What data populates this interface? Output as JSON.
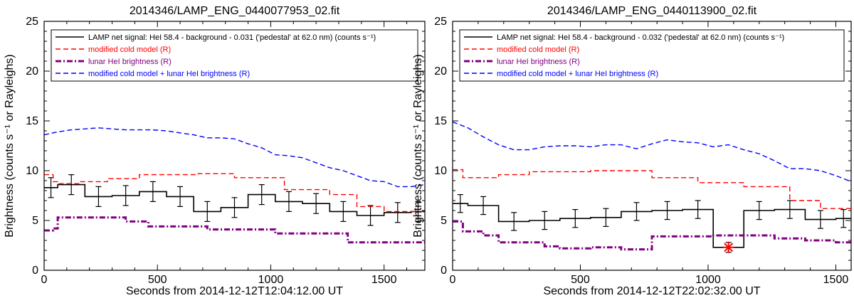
{
  "chart_data": [
    {
      "type": "line",
      "title": "2014346/LAMP_ENG_0440077953_02.fit",
      "xlabel": "Seconds from 2014-12-12T12:04:12.00 UT",
      "ylabel": "Brightness (counts s⁻¹ or Rayleighs)",
      "xlim": [
        0,
        1680
      ],
      "ylim": [
        0,
        25
      ],
      "x_ticks": [
        "0",
        "500",
        "1000",
        "1500"
      ],
      "y_ticks": [
        "0",
        "5",
        "10",
        "15",
        "20",
        "25"
      ],
      "legend": {
        "position": "top",
        "entries": [
          {
            "label": "LAMP net signal: HeI 58.4 - background - 0.031 ('pedestal' at 62.0 nm) (counts s⁻¹)",
            "color": "#000000",
            "style": "solid"
          },
          {
            "label": "modified cold model (R)",
            "color": "#ff0000",
            "style": "dashed"
          },
          {
            "label": "lunar HeI brightness (R)",
            "color": "#800080",
            "style": "dashdot"
          },
          {
            "label": "modified cold model + lunar HeI brightness (R)",
            "color": "#0000ff",
            "style": "dashed"
          }
        ]
      },
      "series": [
        {
          "name": "LAMP net signal",
          "type": "step-errorbar",
          "color": "#000000",
          "edges": [
            0,
            60,
            180,
            300,
            420,
            540,
            660,
            780,
            900,
            1020,
            1140,
            1260,
            1380,
            1500,
            1620,
            1680
          ],
          "values": [
            8.3,
            8.6,
            7.4,
            7.5,
            7.9,
            7.4,
            5.9,
            6.3,
            7.6,
            6.9,
            6.7,
            5.9,
            5.5,
            5.8,
            5.9
          ],
          "errors": [
            1.0,
            1.0,
            1.0,
            1.0,
            1.0,
            1.0,
            1.0,
            1.0,
            1.0,
            1.0,
            1.0,
            1.0,
            1.0,
            1.0,
            1.0
          ]
        },
        {
          "name": "modified cold model",
          "type": "step",
          "color": "#ff0000",
          "dash": "dashed",
          "edges": [
            0,
            40,
            60,
            160,
            280,
            420,
            680,
            840,
            1060,
            1260,
            1380,
            1500,
            1680
          ],
          "values": [
            9.6,
            8.9,
            8.7,
            8.9,
            9.2,
            9.6,
            9.7,
            9.3,
            8.1,
            7.6,
            6.4,
            5.9
          ]
        },
        {
          "name": "lunar HeI brightness",
          "type": "step",
          "color": "#800080",
          "dash": "dashdot",
          "edges": [
            0,
            40,
            60,
            360,
            460,
            720,
            1020,
            1340,
            1680
          ],
          "values": [
            4.0,
            4.2,
            5.3,
            4.9,
            4.4,
            4.1,
            3.7,
            2.8
          ]
        },
        {
          "name": "modified cold model + lunar HeI brightness",
          "type": "line",
          "color": "#0000ff",
          "dash": "dashed",
          "x": [
            0,
            60,
            120,
            180,
            240,
            300,
            360,
            420,
            480,
            540,
            600,
            660,
            720,
            780,
            840,
            900,
            960,
            1020,
            1080,
            1140,
            1200,
            1260,
            1320,
            1380,
            1440,
            1500,
            1560,
            1620,
            1680
          ],
          "y": [
            13.6,
            13.9,
            14.1,
            14.2,
            14.3,
            14.2,
            14.1,
            14.1,
            14.1,
            14.0,
            13.8,
            13.6,
            13.3,
            13.3,
            13.2,
            12.7,
            12.3,
            11.6,
            11.5,
            11.3,
            10.8,
            10.3,
            10.0,
            9.5,
            9.0,
            8.9,
            8.4,
            8.4,
            8.6
          ]
        }
      ]
    },
    {
      "type": "line",
      "title": "2014346/LAMP_ENG_0440113900_02.fit",
      "xlabel": "Seconds from 2014-12-12T22:02:32.00 UT",
      "ylabel": "Brightness (counts s⁻¹ or Rayleighs)",
      "xlim": [
        0,
        1560
      ],
      "ylim": [
        0,
        25
      ],
      "x_ticks": [
        "0",
        "500",
        "1000",
        "1500"
      ],
      "y_ticks": [
        "0",
        "5",
        "10",
        "15",
        "20",
        "25"
      ],
      "legend": {
        "position": "top",
        "entries": [
          {
            "label": "LAMP net signal: HeI 58.4 - background - 0.032 ('pedestal' at 62.0 nm) (counts s⁻¹)",
            "color": "#000000",
            "style": "solid"
          },
          {
            "label": "modified cold model (R)",
            "color": "#ff0000",
            "style": "dashed"
          },
          {
            "label": "lunar HeI brightness (R)",
            "color": "#800080",
            "style": "dashdot"
          },
          {
            "label": "modified cold model + lunar HeI brightness (R)",
            "color": "#0000ff",
            "style": "dashed"
          }
        ]
      },
      "series": [
        {
          "name": "LAMP net signal",
          "type": "step-errorbar",
          "color": "#000000",
          "edges": [
            0,
            60,
            180,
            300,
            420,
            540,
            660,
            780,
            900,
            1020,
            1140,
            1260,
            1380,
            1500,
            1560
          ],
          "values": [
            6.7,
            6.5,
            4.9,
            5.0,
            5.2,
            5.3,
            5.9,
            6.0,
            6.1,
            2.3,
            6.0,
            6.1,
            5.1,
            5.2
          ],
          "errors": [
            0.9,
            0.9,
            0.9,
            0.9,
            0.9,
            0.9,
            0.9,
            0.9,
            0.9,
            0.5,
            0.9,
            0.9,
            0.9,
            0.9
          ]
        },
        {
          "name": "modified cold model",
          "type": "step",
          "color": "#ff0000",
          "dash": "dashed",
          "edges": [
            0,
            40,
            180,
            300,
            540,
            780,
            960,
            1140,
            1320,
            1440,
            1560
          ],
          "values": [
            10.1,
            9.3,
            9.6,
            9.9,
            10.0,
            9.3,
            8.8,
            8.4,
            7.0,
            6.2
          ]
        },
        {
          "name": "lunar HeI brightness",
          "type": "step",
          "color": "#800080",
          "dash": "dashdot",
          "edges": [
            0,
            40,
            120,
            180,
            360,
            420,
            540,
            660,
            780,
            900,
            1020,
            1140,
            1260,
            1380,
            1500,
            1560
          ],
          "values": [
            4.9,
            3.9,
            3.5,
            2.8,
            2.4,
            2.2,
            2.3,
            2.1,
            3.4,
            3.4,
            3.5,
            3.5,
            3.2,
            3.0,
            2.8
          ]
        },
        {
          "name": "modified cold model + lunar HeI brightness",
          "type": "line",
          "color": "#0000ff",
          "dash": "dashed",
          "x": [
            0,
            60,
            120,
            180,
            240,
            300,
            360,
            420,
            480,
            540,
            600,
            660,
            720,
            780,
            840,
            900,
            960,
            1020,
            1080,
            1140,
            1200,
            1260,
            1320,
            1380,
            1440,
            1500,
            1560
          ],
          "y": [
            14.9,
            14.3,
            13.4,
            12.6,
            12.1,
            12.1,
            12.4,
            12.5,
            12.5,
            12.4,
            12.6,
            12.6,
            12.2,
            12.7,
            13.1,
            12.9,
            12.8,
            12.4,
            12.6,
            12.1,
            11.7,
            11.0,
            10.2,
            10.2,
            10.0,
            9.5,
            8.9
          ]
        }
      ],
      "marker": {
        "name": "outlier",
        "x": 1080,
        "y": 2.3,
        "symbol": "asterisk",
        "color": "#ff0000"
      }
    }
  ]
}
